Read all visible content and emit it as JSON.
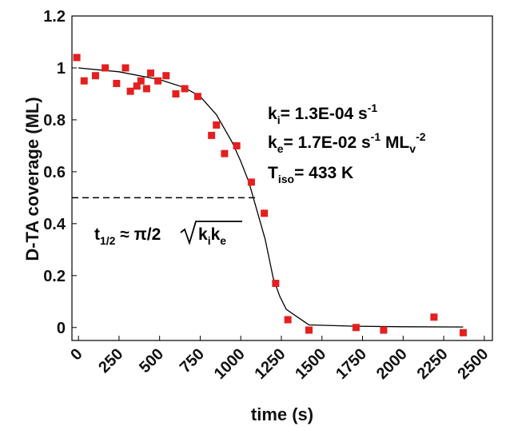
{
  "chart_data": {
    "type": "scatter",
    "xlabel": "time (s)",
    "ylabel": "D-TA coverage (ML)",
    "xlim": [
      -40,
      2550
    ],
    "ylim": [
      -0.05,
      1.2
    ],
    "xticks": [
      0,
      250,
      500,
      750,
      1000,
      1250,
      1500,
      1750,
      2000,
      2250,
      2500
    ],
    "yticks": [
      0,
      0.2,
      0.4,
      0.6,
      0.8,
      1,
      1.2
    ],
    "xtick_labels": [
      "0",
      "250",
      "500",
      "750",
      "1000",
      "1250",
      "1500",
      "1750",
      "2000",
      "2250",
      "2500"
    ],
    "ytick_labels": [
      "0",
      "0.2",
      "0.4",
      "0.6",
      "0.8",
      "1",
      "1.2"
    ],
    "grid": false,
    "marker_color": "#e41f1f",
    "line_color": "#000000",
    "series": [
      {
        "kind": "points",
        "points": [
          [
            -10,
            1.04
          ],
          [
            35,
            0.95
          ],
          [
            105,
            0.97
          ],
          [
            165,
            1.0
          ],
          [
            235,
            0.94
          ],
          [
            290,
            1.0
          ],
          [
            320,
            0.91
          ],
          [
            360,
            0.93
          ],
          [
            385,
            0.95
          ],
          [
            420,
            0.92
          ],
          [
            445,
            0.98
          ],
          [
            490,
            0.95
          ],
          [
            540,
            0.97
          ],
          [
            600,
            0.9
          ],
          [
            655,
            0.92
          ],
          [
            735,
            0.89
          ],
          [
            820,
            0.74
          ],
          [
            850,
            0.78
          ],
          [
            900,
            0.67
          ],
          [
            975,
            0.7
          ],
          [
            1065,
            0.56
          ],
          [
            1145,
            0.44
          ],
          [
            1215,
            0.17
          ],
          [
            1290,
            0.03
          ],
          [
            1420,
            -0.01
          ],
          [
            1710,
            0.0
          ],
          [
            1880,
            -0.01
          ],
          [
            2190,
            0.04
          ],
          [
            2370,
            -0.02
          ]
        ]
      },
      {
        "kind": "fit",
        "points": [
          [
            0,
            1.0
          ],
          [
            250,
            0.985
          ],
          [
            500,
            0.955
          ],
          [
            650,
            0.925
          ],
          [
            750,
            0.89
          ],
          [
            850,
            0.82
          ],
          [
            950,
            0.71
          ],
          [
            1000,
            0.64
          ],
          [
            1050,
            0.56
          ],
          [
            1100,
            0.45
          ],
          [
            1150,
            0.34
          ],
          [
            1200,
            0.19
          ],
          [
            1240,
            0.12
          ],
          [
            1280,
            0.07
          ],
          [
            1420,
            0.01
          ],
          [
            1700,
            0.005
          ],
          [
            2000,
            0.003
          ],
          [
            2370,
            0.002
          ]
        ]
      },
      {
        "kind": "half-life",
        "points": [
          [
            -40,
            0.5
          ],
          [
            1090,
            0.5
          ]
        ]
      }
    ],
    "annotations": {
      "ki_main": "k",
      "ki_sub": "i",
      "ki_value": "= 1.3E-04 s",
      "ki_exp": "-1",
      "ke_main": "k",
      "ke_sub": "e",
      "ke_value": "= 1.7E-02 s",
      "ke_exp1": "-1",
      "ke_unit": " ML",
      "ke_unit_sub": "v",
      "ke_exp2": "-2",
      "tiso_main": "T",
      "tiso_sub": "iso",
      "tiso_value": "=  433 K",
      "thalf_main": "t",
      "thalf_sub": "1/2",
      "thalf_approx": " ≈ π/2",
      "thalf_root_k1": "k",
      "thalf_root_sub1": "i",
      "thalf_root_k2": "k",
      "thalf_root_sub2": "e"
    }
  }
}
